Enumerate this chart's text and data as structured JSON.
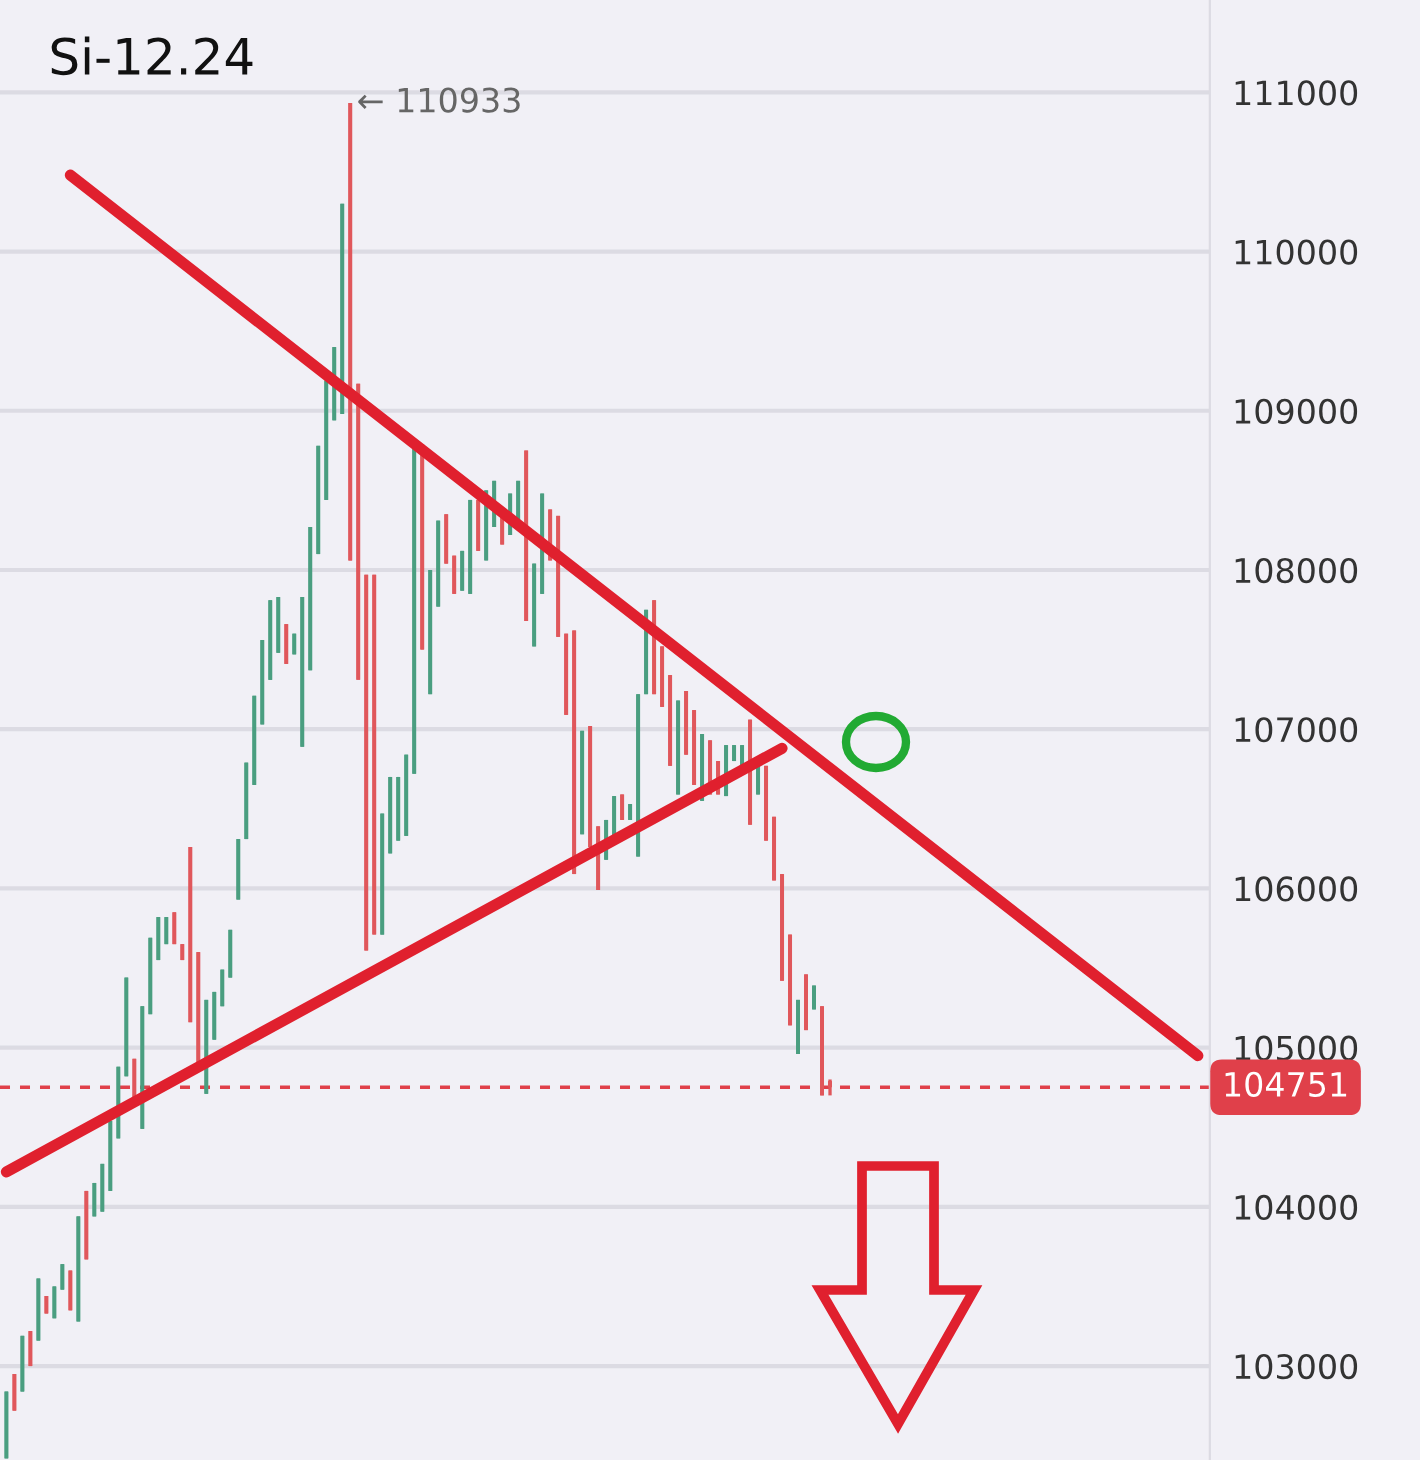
{
  "chart_data": {
    "type": "candlestick",
    "title": "Si-12.24",
    "categories": [
      null,
      null,
      null,
      null,
      null,
      null,
      null,
      null,
      null,
      null,
      null,
      null,
      null,
      null,
      null,
      null,
      null,
      null,
      null,
      null,
      null,
      null,
      null,
      null,
      null,
      null,
      null,
      null,
      null,
      null,
      null,
      null,
      null,
      null,
      null,
      null,
      null,
      null,
      null,
      null,
      null,
      null,
      null,
      null,
      null,
      null,
      null,
      null,
      null,
      null,
      null,
      null,
      null,
      null,
      null,
      null,
      null,
      null,
      null,
      null,
      null,
      null,
      null,
      null,
      null,
      null,
      null,
      null,
      null,
      null,
      null,
      null,
      null,
      null,
      null,
      null,
      null,
      null,
      null,
      null,
      null,
      null,
      null,
      null,
      null,
      null,
      null,
      null,
      null,
      null,
      null,
      null,
      null,
      null,
      null,
      null,
      null,
      null,
      null,
      null,
      null,
      null,
      null,
      null,
      null,
      null,
      null,
      null,
      null,
      null,
      null,
      null,
      null,
      null,
      null,
      null,
      null,
      null,
      null,
      null,
      null,
      null,
      null,
      null,
      null,
      null,
      null,
      null,
      null,
      null,
      null,
      null,
      null,
      null,
      null,
      null,
      null,
      null,
      null,
      null,
      null,
      null,
      null,
      null,
      null,
      null,
      null,
      null,
      null,
      null,
      null
    ],
    "colors": [
      "#4a9e80",
      "#e0575b",
      "#4a9e80",
      "#e0575b",
      "#4a9e80",
      "#e0575b",
      "#4a9e80",
      "#4a9e80",
      "#e0575b",
      "#4a9e80",
      "#e0575b",
      "#4a9e80",
      "#4a9e80",
      "#4a9e80",
      "#4a9e80",
      "#4a9e80",
      "#e0575b",
      "#4a9e80",
      "#4a9e80",
      "#4a9e80",
      "#4a9e80",
      "#e0575b",
      "#e0575b",
      "#e0575b",
      "#e0575b",
      "#4a9e80",
      "#4a9e80",
      "#4a9e80",
      "#4a9e80",
      "#4a9e80",
      "#4a9e80",
      "#4a9e80",
      "#4a9e80",
      "#4a9e80",
      "#4a9e80",
      "#e0575b",
      "#4a9e80",
      "#4a9e80",
      "#4a9e80",
      "#4a9e80",
      "#4a9e80",
      "#4a9e80",
      "#4a9e80",
      "#e0575b",
      "#e0575b",
      "#e0575b",
      "#e0575b",
      "#4a9e80",
      "#4a9e80",
      "#4a9e80",
      "#4a9e80",
      "#4a9e80",
      "#e0575b",
      "#4a9e80",
      "#4a9e80",
      "#e0575b",
      "#e0575b",
      "#4a9e80",
      "#4a9e80",
      "#e0575b",
      "#4a9e80",
      "#4a9e80",
      "#e0575b",
      "#4a9e80",
      "#4a9e80",
      "#e0575b",
      "#4a9e80",
      "#4a9e80",
      "#e0575b",
      "#e0575b",
      "#e0575b",
      "#e0575b",
      "#4a9e80",
      "#e0575b",
      "#e0575b",
      "#4a9e80",
      "#4a9e80",
      "#e0575b",
      "#4a9e80",
      "#4a9e80",
      "#4a9e80",
      "#e0575b",
      "#e0575b",
      "#e0575b",
      "#4a9e80",
      "#e0575b",
      "#e0575b",
      "#4a9e80",
      "#e0575b",
      "#e0575b",
      "#4a9e80",
      "#4a9e80",
      "#4a9e80",
      "#e0575b",
      "#4a9e80",
      "#e0575b",
      "#e0575b",
      "#e0575b",
      "#e0575b",
      "#4a9e80",
      "#e0575b",
      "#4a9e80",
      "#e0575b",
      "#e0575b",
      null,
      null,
      null,
      null,
      null,
      null,
      null,
      null,
      null,
      null,
      null,
      null,
      null,
      null,
      null,
      null,
      null,
      null,
      null,
      null,
      null,
      null,
      null,
      null,
      null,
      null,
      null,
      null,
      null,
      null,
      null,
      null,
      null,
      null,
      null,
      null,
      null,
      null,
      null,
      null,
      null,
      null,
      null,
      null,
      null,
      null,
      null
    ],
    "ohlc": [
      [
        102420,
        102840,
        102420,
        102840
      ],
      [
        102950,
        102950,
        102720,
        102720
      ],
      [
        102840,
        103190,
        102840,
        103190
      ],
      [
        103220,
        103220,
        103000,
        103000
      ],
      [
        103160,
        103550,
        103160,
        103550
      ],
      [
        103440,
        103440,
        103330,
        103330
      ],
      [
        103300,
        103500,
        103300,
        103500
      ],
      [
        103480,
        103640,
        103480,
        103640
      ],
      [
        103600,
        103600,
        103350,
        103350
      ],
      [
        103280,
        103940,
        103280,
        103940
      ],
      [
        104100,
        104100,
        103670,
        103670
      ],
      [
        103940,
        104150,
        103940,
        104150
      ],
      [
        103970,
        104270,
        103970,
        104270
      ],
      [
        104100,
        104540,
        104100,
        104540
      ],
      [
        104430,
        104880,
        104430,
        104880
      ],
      [
        104820,
        105440,
        104820,
        105440
      ],
      [
        104930,
        104930,
        104660,
        104660
      ],
      [
        104490,
        105260,
        104490,
        105260
      ],
      [
        105210,
        105690,
        105210,
        105690
      ],
      [
        105550,
        105820,
        105550,
        105820
      ],
      [
        105650,
        105820,
        105650,
        105820
      ],
      [
        105850,
        105850,
        105650,
        105650
      ],
      [
        105650,
        105650,
        105550,
        105550
      ],
      [
        106260,
        106260,
        105160,
        105160
      ],
      [
        105600,
        105600,
        104880,
        104880
      ],
      [
        104710,
        105300,
        104710,
        105300
      ],
      [
        105050,
        105350,
        105050,
        105350
      ],
      [
        105260,
        105490,
        105260,
        105490
      ],
      [
        105440,
        105740,
        105440,
        105740
      ],
      [
        105930,
        106310,
        105930,
        106310
      ],
      [
        106310,
        106790,
        106310,
        106790
      ],
      [
        106650,
        107210,
        106650,
        107210
      ],
      [
        107030,
        107560,
        107030,
        107560
      ],
      [
        107310,
        107810,
        107310,
        107810
      ],
      [
        107480,
        107830,
        107480,
        107830
      ],
      [
        107660,
        107660,
        107410,
        107410
      ],
      [
        107470,
        107600,
        107470,
        107600
      ],
      [
        106890,
        107830,
        106890,
        107830
      ],
      [
        107370,
        108270,
        107370,
        108270
      ],
      [
        108100,
        108780,
        108100,
        108780
      ],
      [
        108440,
        109190,
        108440,
        109190
      ],
      [
        108940,
        109400,
        108940,
        109400
      ],
      [
        108980,
        110300,
        108980,
        110300
      ],
      [
        110933,
        110933,
        108060,
        108060
      ],
      [
        109170,
        109170,
        107310,
        107310
      ],
      [
        107970,
        107970,
        105610,
        105610
      ],
      [
        107970,
        107970,
        105710,
        105710
      ],
      [
        105710,
        106470,
        105710,
        106470
      ],
      [
        106220,
        106700,
        106220,
        106700
      ],
      [
        106300,
        106700,
        106300,
        106700
      ],
      [
        106330,
        106840,
        106330,
        106840
      ],
      [
        106720,
        108780,
        106720,
        108780
      ],
      [
        108790,
        108790,
        107500,
        107500
      ],
      [
        107220,
        108000,
        107220,
        108000
      ],
      [
        107770,
        108310,
        107770,
        108310
      ],
      [
        108350,
        108350,
        108040,
        108040
      ],
      [
        108090,
        108090,
        107850,
        107850
      ],
      [
        107870,
        108120,
        107870,
        108120
      ],
      [
        107850,
        108440,
        107850,
        108440
      ],
      [
        108440,
        108440,
        108120,
        108120
      ],
      [
        108060,
        108500,
        108060,
        108500
      ],
      [
        108270,
        108560,
        108270,
        108560
      ],
      [
        108350,
        108350,
        108160,
        108160
      ],
      [
        108220,
        108480,
        108220,
        108480
      ],
      [
        108310,
        108560,
        108310,
        108560
      ],
      [
        108750,
        108750,
        107680,
        107680
      ],
      [
        107520,
        108040,
        107520,
        108040
      ],
      [
        107850,
        108480,
        107850,
        108480
      ],
      [
        108380,
        108380,
        108060,
        108060
      ],
      [
        108340,
        108340,
        107580,
        107580
      ],
      [
        107600,
        107600,
        107090,
        107090
      ],
      [
        107620,
        107620,
        106090,
        106090
      ],
      [
        106340,
        106990,
        106340,
        106990
      ],
      [
        107020,
        107020,
        106260,
        106260
      ],
      [
        106390,
        106390,
        105990,
        105990
      ],
      [
        106180,
        106430,
        106180,
        106430
      ],
      [
        106300,
        106580,
        106300,
        106580
      ],
      [
        106590,
        106590,
        106430,
        106430
      ],
      [
        106430,
        106530,
        106430,
        106530
      ],
      [
        106200,
        107220,
        106200,
        107220
      ],
      [
        107220,
        107750,
        107220,
        107750
      ],
      [
        107810,
        107810,
        107220,
        107220
      ],
      [
        107520,
        107520,
        107140,
        107140
      ],
      [
        107340,
        107340,
        106770,
        106770
      ],
      [
        106590,
        107180,
        106590,
        107180
      ],
      [
        107240,
        107240,
        106840,
        106840
      ],
      [
        107120,
        107120,
        106650,
        106650
      ],
      [
        106550,
        106970,
        106550,
        106970
      ],
      [
        106930,
        106930,
        106590,
        106590
      ],
      [
        106800,
        106800,
        106590,
        106590
      ],
      [
        106580,
        106900,
        106580,
        106900
      ],
      [
        106800,
        106900,
        106800,
        106900
      ],
      [
        106770,
        106900,
        106770,
        106900
      ],
      [
        107060,
        107060,
        106400,
        106400
      ],
      [
        106590,
        106800,
        106590,
        106800
      ],
      [
        106770,
        106770,
        106300,
        106300
      ],
      [
        106450,
        106450,
        106050,
        106050
      ],
      [
        106090,
        106090,
        105420,
        105420
      ],
      [
        105710,
        105710,
        105140,
        105140
      ],
      [
        104960,
        105300,
        104960,
        105300
      ],
      [
        105460,
        105460,
        105110,
        105110
      ],
      [
        105240,
        105390,
        105240,
        105390
      ],
      [
        105260,
        105260,
        104700,
        104700
      ],
      [
        104790,
        104800,
        104700,
        104751
      ],
      null,
      null,
      null,
      null,
      null,
      null,
      null,
      null,
      null,
      null,
      null,
      null,
      null,
      null,
      null,
      null,
      null,
      null,
      null,
      null,
      null,
      null,
      null,
      null,
      null,
      null,
      null,
      null,
      null,
      null,
      null,
      null,
      null,
      null,
      null,
      null,
      null,
      null,
      null,
      null,
      null,
      null,
      null,
      null,
      null,
      null,
      null
    ],
    "series": [
      {
        "type": "line",
        "color": "#e0202e",
        "values": [
          null,
          null,
          null,
          null,
          null,
          null,
          null,
          null,
          110480,
          null,
          null,
          null,
          null,
          null,
          null,
          null,
          null,
          null,
          null,
          null,
          null,
          null,
          null,
          null,
          null,
          null,
          null,
          null,
          null,
          null,
          null,
          null,
          null,
          null,
          null,
          null,
          null,
          null,
          null,
          null,
          null,
          null,
          null,
          null,
          null,
          null,
          null,
          null,
          null,
          null,
          null,
          null,
          null,
          null,
          null,
          null,
          null,
          null,
          null,
          null,
          null,
          null,
          null,
          null,
          null,
          null,
          null,
          null,
          null,
          null,
          null,
          null,
          null,
          null,
          null,
          null,
          null,
          null,
          null,
          null,
          null,
          null,
          null,
          null,
          null,
          null,
          null,
          null,
          null,
          null,
          null,
          null,
          null,
          null,
          null,
          null,
          null,
          null,
          null,
          null,
          null,
          null,
          null,
          null,
          null,
          null,
          null,
          null,
          null,
          null,
          null,
          null,
          null,
          null,
          null,
          null,
          null,
          null,
          null,
          null,
          null,
          null,
          null,
          null,
          null,
          null,
          null,
          null,
          null,
          null,
          null,
          null,
          null,
          null,
          null,
          null,
          null,
          null,
          null,
          null,
          null,
          null,
          null,
          null,
          null,
          null,
          null,
          null,
          null,
          104950,
          null
        ]
      },
      {
        "type": "line",
        "color": "#e0202e",
        "values": [
          104220,
          null,
          null,
          null,
          null,
          null,
          null,
          null,
          null,
          null,
          null,
          null,
          null,
          null,
          null,
          null,
          null,
          null,
          null,
          null,
          null,
          null,
          null,
          null,
          null,
          null,
          null,
          null,
          null,
          null,
          null,
          null,
          null,
          null,
          null,
          null,
          null,
          null,
          null,
          null,
          null,
          null,
          null,
          null,
          null,
          null,
          null,
          null,
          null,
          null,
          null,
          null,
          null,
          null,
          null,
          null,
          null,
          null,
          null,
          null,
          null,
          null,
          null,
          null,
          null,
          null,
          null,
          null,
          null,
          null,
          null,
          null,
          null,
          null,
          null,
          null,
          null,
          null,
          null,
          null,
          null,
          null,
          null,
          null,
          null,
          null,
          null,
          null,
          null,
          null,
          null,
          null,
          null,
          null,
          null,
          null,
          null,
          106880,
          null,
          null,
          null,
          null,
          null,
          null,
          null,
          null,
          null,
          null,
          null,
          null,
          null,
          null,
          null,
          null,
          null,
          null,
          null,
          null,
          null,
          null,
          null,
          null,
          null,
          null,
          null,
          null,
          null,
          null,
          null,
          null,
          null,
          null,
          null,
          null,
          null,
          null,
          null,
          null,
          null,
          null,
          null,
          null,
          null,
          null,
          null,
          null,
          null,
          null,
          null,
          null,
          null
        ]
      }
    ],
    "ylim": [
      102410,
      111580
    ],
    "yticks": [
      103000,
      104000,
      105000,
      106000,
      107000,
      108000,
      109000,
      110000,
      111000
    ],
    "ref_lines": [
      {
        "axis": "y",
        "value": 104751,
        "label": "104751",
        "color": "#e0404a",
        "line_style": "dashed"
      }
    ],
    "annotations": [
      "← 110933"
    ],
    "grid": "y",
    "tick_labels": "y"
  }
}
